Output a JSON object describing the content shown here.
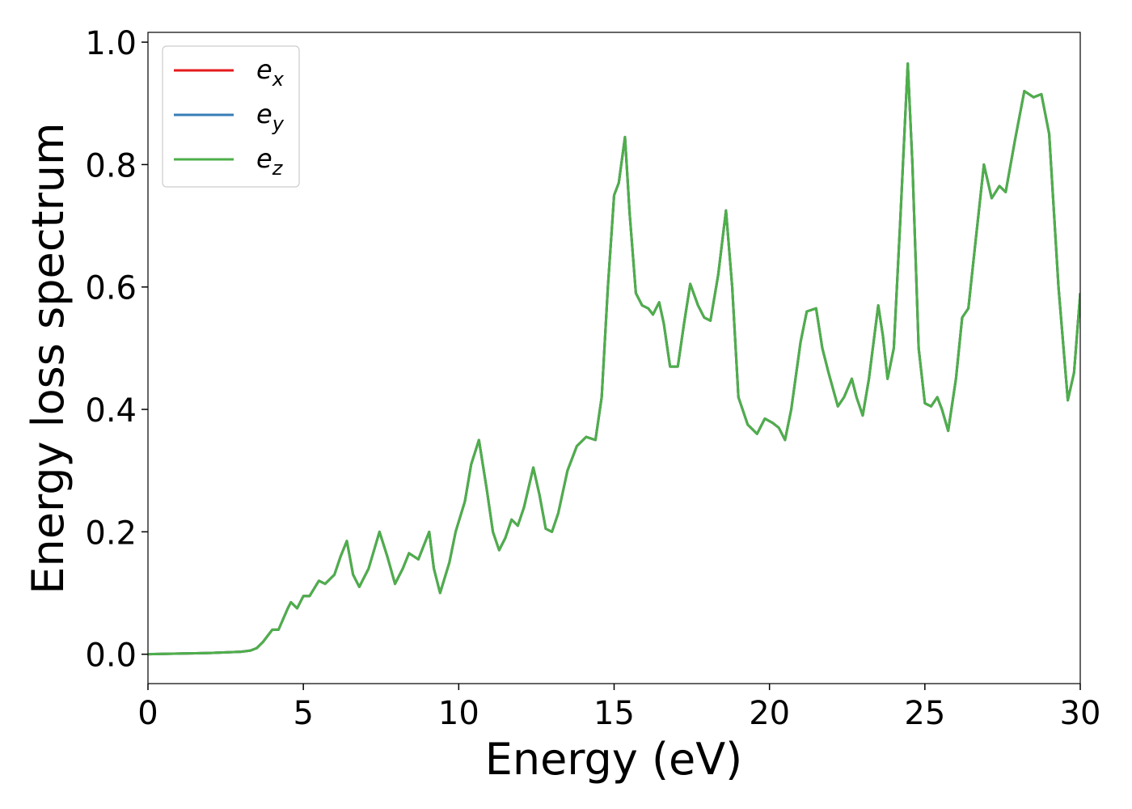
{
  "chart_data": {
    "type": "line",
    "xlabel": "Energy (eV)",
    "ylabel": "Energy loss spectrum",
    "x": [
      0,
      1,
      2,
      3,
      3.3,
      3.5,
      3.7,
      4.0,
      4.2,
      4.5,
      4.6,
      4.8,
      5.0,
      5.2,
      5.5,
      5.7,
      6.0,
      6.2,
      6.4,
      6.6,
      6.8,
      7.1,
      7.45,
      7.7,
      7.95,
      8.2,
      8.4,
      8.7,
      9.05,
      9.2,
      9.4,
      9.7,
      9.9,
      10.2,
      10.4,
      10.65,
      10.9,
      11.1,
      11.3,
      11.5,
      11.7,
      11.9,
      12.1,
      12.4,
      12.6,
      12.8,
      13.0,
      13.2,
      13.5,
      13.8,
      14.1,
      14.4,
      14.6,
      14.8,
      15.0,
      15.15,
      15.35,
      15.5,
      15.7,
      15.9,
      16.1,
      16.25,
      16.45,
      16.6,
      16.8,
      17.05,
      17.25,
      17.45,
      17.7,
      17.9,
      18.1,
      18.35,
      18.6,
      18.8,
      19.0,
      19.3,
      19.6,
      19.85,
      20.1,
      20.3,
      20.5,
      20.7,
      21.0,
      21.2,
      21.5,
      21.7,
      21.9,
      22.2,
      22.4,
      22.65,
      22.8,
      23.0,
      23.2,
      23.5,
      23.65,
      23.8,
      24.0,
      24.2,
      24.45,
      24.6,
      24.8,
      25.0,
      25.2,
      25.4,
      25.55,
      25.75,
      26.0,
      26.2,
      26.4,
      26.6,
      26.9,
      27.15,
      27.4,
      27.6,
      27.9,
      28.2,
      28.5,
      28.75,
      29.0,
      29.3,
      29.6,
      29.8,
      30.0
    ],
    "series": [
      {
        "name": "e_x",
        "color": "#e41a1c",
        "values": [
          0.0,
          0.001,
          0.002,
          0.004,
          0.006,
          0.01,
          0.02,
          0.04,
          0.04,
          0.075,
          0.085,
          0.075,
          0.095,
          0.095,
          0.12,
          0.115,
          0.13,
          0.16,
          0.185,
          0.13,
          0.11,
          0.14,
          0.2,
          0.16,
          0.115,
          0.14,
          0.165,
          0.155,
          0.2,
          0.14,
          0.1,
          0.15,
          0.2,
          0.25,
          0.31,
          0.35,
          0.27,
          0.2,
          0.17,
          0.19,
          0.22,
          0.21,
          0.24,
          0.305,
          0.26,
          0.205,
          0.2,
          0.23,
          0.3,
          0.34,
          0.355,
          0.35,
          0.42,
          0.6,
          0.75,
          0.77,
          0.845,
          0.72,
          0.59,
          0.57,
          0.565,
          0.555,
          0.575,
          0.54,
          0.47,
          0.47,
          0.54,
          0.605,
          0.57,
          0.55,
          0.545,
          0.62,
          0.725,
          0.6,
          0.42,
          0.375,
          0.36,
          0.385,
          0.378,
          0.37,
          0.35,
          0.4,
          0.51,
          0.56,
          0.565,
          0.5,
          0.46,
          0.405,
          0.42,
          0.45,
          0.42,
          0.39,
          0.45,
          0.57,
          0.52,
          0.45,
          0.5,
          0.7,
          0.965,
          0.8,
          0.5,
          0.41,
          0.405,
          0.42,
          0.4,
          0.365,
          0.45,
          0.55,
          0.565,
          0.66,
          0.8,
          0.745,
          0.765,
          0.755,
          0.84,
          0.92,
          0.91,
          0.915,
          0.85,
          0.6,
          0.415,
          0.46,
          0.59
        ]
      },
      {
        "name": "e_y",
        "color": "#377eb8",
        "values": [
          0.0,
          0.001,
          0.002,
          0.004,
          0.006,
          0.01,
          0.02,
          0.04,
          0.04,
          0.075,
          0.085,
          0.075,
          0.095,
          0.095,
          0.12,
          0.115,
          0.13,
          0.16,
          0.185,
          0.13,
          0.11,
          0.14,
          0.2,
          0.16,
          0.115,
          0.14,
          0.165,
          0.155,
          0.2,
          0.14,
          0.1,
          0.15,
          0.2,
          0.25,
          0.31,
          0.35,
          0.27,
          0.2,
          0.17,
          0.19,
          0.22,
          0.21,
          0.24,
          0.305,
          0.26,
          0.205,
          0.2,
          0.23,
          0.3,
          0.34,
          0.355,
          0.35,
          0.42,
          0.6,
          0.75,
          0.77,
          0.845,
          0.72,
          0.59,
          0.57,
          0.565,
          0.555,
          0.575,
          0.54,
          0.47,
          0.47,
          0.54,
          0.605,
          0.57,
          0.55,
          0.545,
          0.62,
          0.725,
          0.6,
          0.42,
          0.375,
          0.36,
          0.385,
          0.378,
          0.37,
          0.35,
          0.4,
          0.51,
          0.56,
          0.565,
          0.5,
          0.46,
          0.405,
          0.42,
          0.45,
          0.42,
          0.39,
          0.45,
          0.57,
          0.52,
          0.45,
          0.5,
          0.7,
          0.965,
          0.8,
          0.5,
          0.41,
          0.405,
          0.42,
          0.4,
          0.365,
          0.45,
          0.55,
          0.565,
          0.66,
          0.8,
          0.745,
          0.765,
          0.755,
          0.84,
          0.92,
          0.91,
          0.915,
          0.85,
          0.6,
          0.415,
          0.46,
          0.59
        ]
      },
      {
        "name": "e_z",
        "color": "#4daf4a",
        "values": [
          0.0,
          0.001,
          0.002,
          0.004,
          0.006,
          0.01,
          0.02,
          0.04,
          0.04,
          0.075,
          0.085,
          0.075,
          0.095,
          0.095,
          0.12,
          0.115,
          0.13,
          0.16,
          0.185,
          0.13,
          0.11,
          0.14,
          0.2,
          0.16,
          0.115,
          0.14,
          0.165,
          0.155,
          0.2,
          0.14,
          0.1,
          0.15,
          0.2,
          0.25,
          0.31,
          0.35,
          0.27,
          0.2,
          0.17,
          0.19,
          0.22,
          0.21,
          0.24,
          0.305,
          0.26,
          0.205,
          0.2,
          0.23,
          0.3,
          0.34,
          0.355,
          0.35,
          0.42,
          0.6,
          0.75,
          0.77,
          0.845,
          0.72,
          0.59,
          0.57,
          0.565,
          0.555,
          0.575,
          0.54,
          0.47,
          0.47,
          0.54,
          0.605,
          0.57,
          0.55,
          0.545,
          0.62,
          0.725,
          0.6,
          0.42,
          0.375,
          0.36,
          0.385,
          0.378,
          0.37,
          0.35,
          0.4,
          0.51,
          0.56,
          0.565,
          0.5,
          0.46,
          0.405,
          0.42,
          0.45,
          0.42,
          0.39,
          0.45,
          0.57,
          0.52,
          0.45,
          0.5,
          0.7,
          0.965,
          0.8,
          0.5,
          0.41,
          0.405,
          0.42,
          0.4,
          0.365,
          0.45,
          0.55,
          0.565,
          0.66,
          0.8,
          0.745,
          0.765,
          0.755,
          0.84,
          0.92,
          0.91,
          0.915,
          0.85,
          0.6,
          0.415,
          0.46,
          0.59
        ]
      }
    ],
    "xlim": [
      0,
      30
    ],
    "xticks": [
      0,
      5,
      10,
      15,
      20,
      25,
      30
    ],
    "ylim": [
      -0.048,
      1.016
    ],
    "yticks": [
      {
        "value": 0,
        "label": "0.0"
      },
      0.2,
      0.4,
      0.6,
      0.8,
      {
        "value": 1,
        "label": "1.0"
      }
    ],
    "legend": "upper left",
    "grid": false
  }
}
